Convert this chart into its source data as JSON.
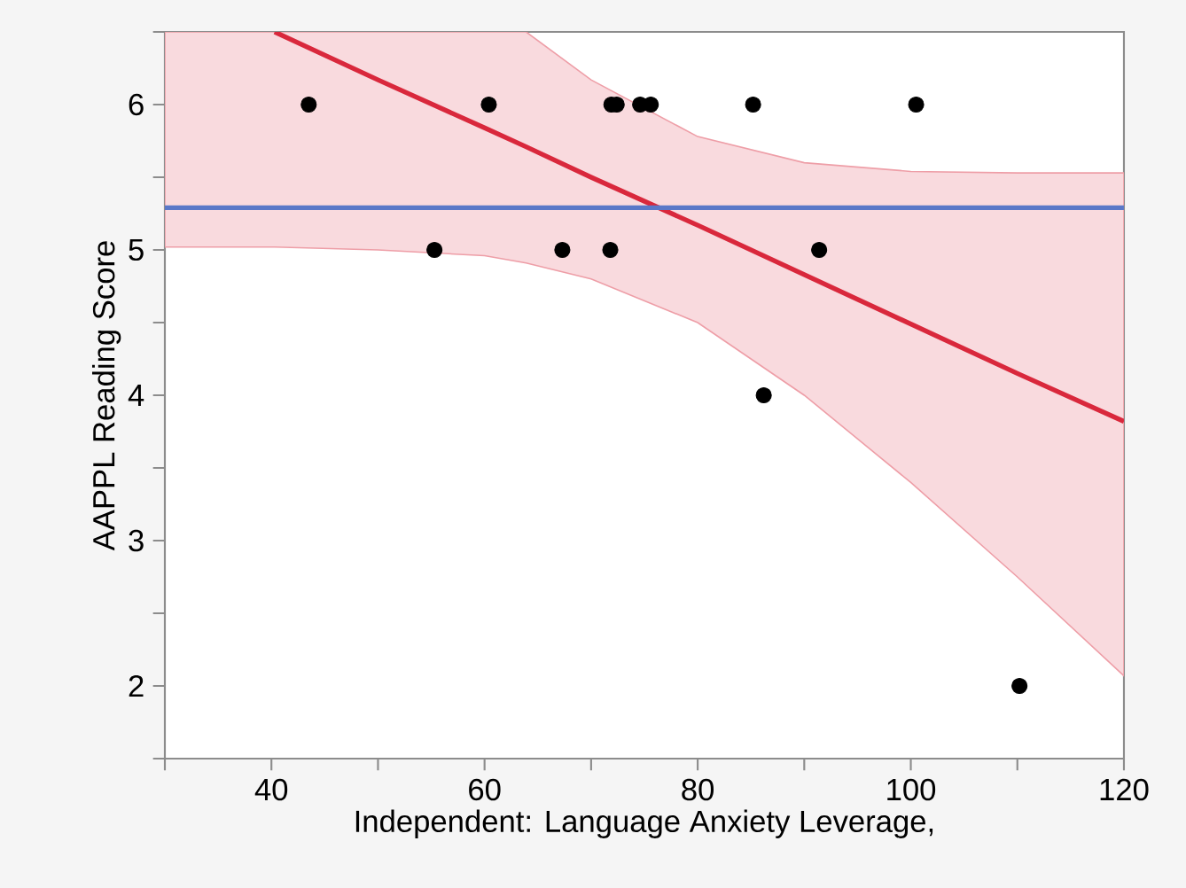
{
  "chart_data": {
    "type": "scatter",
    "xlabel": "Independent: Language Anxiety Leverage,",
    "ylabel": "AAPPL Reading Score",
    "xlim": [
      30,
      120
    ],
    "ylim": [
      1.5,
      6.5
    ],
    "xticks": [
      {
        "value": 30,
        "label": null
      },
      40,
      {
        "value": 50,
        "label": null
      },
      60,
      {
        "value": 70,
        "label": null
      },
      80,
      {
        "value": 90,
        "label": null
      },
      100,
      {
        "value": 110,
        "label": null
      },
      120
    ],
    "yticks": [
      {
        "value": 1.5,
        "label": null
      },
      2,
      {
        "value": 2.5,
        "label": null
      },
      3,
      {
        "value": 3.5,
        "label": null
      },
      4,
      {
        "value": 4.5,
        "label": null
      },
      5,
      {
        "value": 5.5,
        "label": null
      },
      6,
      {
        "value": 6.5,
        "label": null
      }
    ],
    "grid": false,
    "ref_lines": [
      {
        "axis": "y",
        "value": 5.29,
        "color": "#5a78c8"
      }
    ],
    "series": [
      {
        "marker": "circle",
        "color": "#000000",
        "x": [
          43.5,
          60.4,
          71.9,
          72.4,
          74.6,
          75.6,
          85.2,
          100.5,
          55.3,
          67.3,
          71.8,
          91.4,
          86.2,
          110.2
        ],
        "values": [
          6,
          6,
          6,
          6,
          6,
          6,
          6,
          6,
          5,
          5,
          5,
          5,
          4,
          2
        ]
      },
      {
        "type": "line",
        "marker": "none",
        "color": "#d9283c",
        "x": [
          30,
          40.3,
          50,
          60,
          63.9,
          70,
          80,
          90,
          100,
          110,
          120
        ],
        "values": [
          null,
          6.5,
          6.17,
          5.84,
          5.71,
          5.5,
          5.17,
          4.83,
          4.49,
          4.15,
          3.82
        ],
        "lower": [
          5.02,
          5.02,
          5.0,
          4.96,
          4.91,
          4.8,
          4.5,
          4.0,
          3.4,
          2.75,
          2.07
        ],
        "upper": [
          6.5,
          6.5,
          6.5,
          6.5,
          6.5,
          6.17,
          5.78,
          5.6,
          5.54,
          5.53,
          5.53
        ]
      }
    ]
  }
}
